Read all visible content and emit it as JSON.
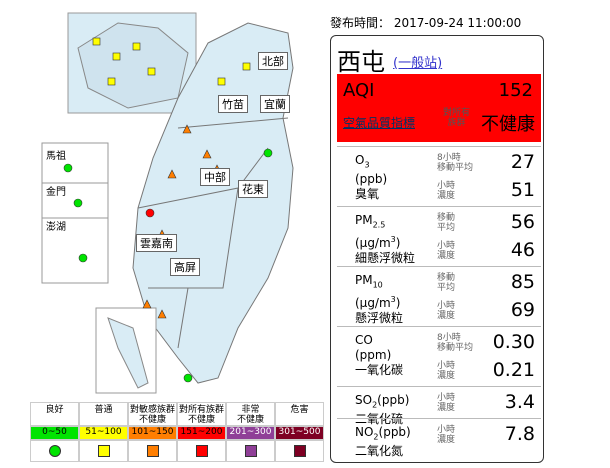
{
  "header": {
    "published_label": "發布時間：",
    "published_time": "2017-09-24 11:00:00"
  },
  "map": {
    "regions": [
      "北部",
      "竹苗",
      "宜蘭",
      "中部",
      "花東",
      "雲嘉南",
      "高屏"
    ],
    "islands": [
      "馬祖",
      "金門",
      "澎湖"
    ]
  },
  "station": {
    "name": "西屯",
    "type": "(一般站)"
  },
  "aqi": {
    "label": "AQI",
    "value": 152,
    "subtitle": "空氣品質指標",
    "note": [
      "對所有",
      "族群"
    ],
    "status": "不健康"
  },
  "pollutants": [
    {
      "formula": "O",
      "formula_sub": "3",
      "unit": "(ppb)",
      "chinese": "臭氧",
      "rows": [
        {
          "label": [
            "8小時",
            "移動平均"
          ],
          "value": "27"
        },
        {
          "label": [
            "小時",
            "濃度"
          ],
          "value": "51"
        }
      ]
    },
    {
      "formula": "PM",
      "formula_sub": "2.5",
      "unit": "(μg/m",
      "unit_sup": "3",
      "unit_end": ")",
      "chinese": "細懸浮微粒",
      "rows": [
        {
          "label": [
            "移動",
            "平均"
          ],
          "value": "56"
        },
        {
          "label": [
            "小時",
            "濃度"
          ],
          "value": "46"
        }
      ]
    },
    {
      "formula": "PM",
      "formula_sub": "10",
      "unit": "(μg/m",
      "unit_sup": "3",
      "unit_end": ")",
      "chinese": "懸浮微粒",
      "rows": [
        {
          "label": [
            "移動",
            "平均"
          ],
          "value": "85"
        },
        {
          "label": [
            "小時",
            "濃度"
          ],
          "value": "69"
        }
      ]
    },
    {
      "formula": "CO",
      "unit": "(ppm)",
      "chinese": "一氧化碳",
      "rows": [
        {
          "label": [
            "8小時",
            "移動平均"
          ],
          "value": "0.30"
        },
        {
          "label": [
            "小時",
            "濃度"
          ],
          "value": "0.21"
        }
      ]
    },
    {
      "formula": "SO",
      "formula_sub": "2",
      "formula_unit": "(ppb)",
      "chinese": "二氧化硫",
      "rows": [
        {
          "label": [
            "小時",
            "濃度"
          ],
          "value": "3.4"
        }
      ]
    },
    {
      "formula": "NO",
      "formula_sub": "2",
      "formula_unit": "(ppb)",
      "chinese": "二氧化氮",
      "rows": [
        {
          "label": [
            "小時",
            "濃度"
          ],
          "value": "7.8"
        }
      ]
    }
  ],
  "legend": [
    {
      "label": [
        "良好"
      ],
      "range": "0~50",
      "color": "#00e400"
    },
    {
      "label": [
        "普通"
      ],
      "range": "51~100",
      "color": "#ffff00"
    },
    {
      "label": [
        "對敏感族群",
        "不健康"
      ],
      "range": "101~150",
      "color": "#ff7e00"
    },
    {
      "label": [
        "對所有族群",
        "不健康"
      ],
      "range": "151~200",
      "color": "#ff0000"
    },
    {
      "label": [
        "非常",
        "不健康"
      ],
      "range": "201~300",
      "color": "#8f3f97"
    },
    {
      "label": [
        "危害"
      ],
      "range": "301~500",
      "color": "#7e0023"
    }
  ]
}
